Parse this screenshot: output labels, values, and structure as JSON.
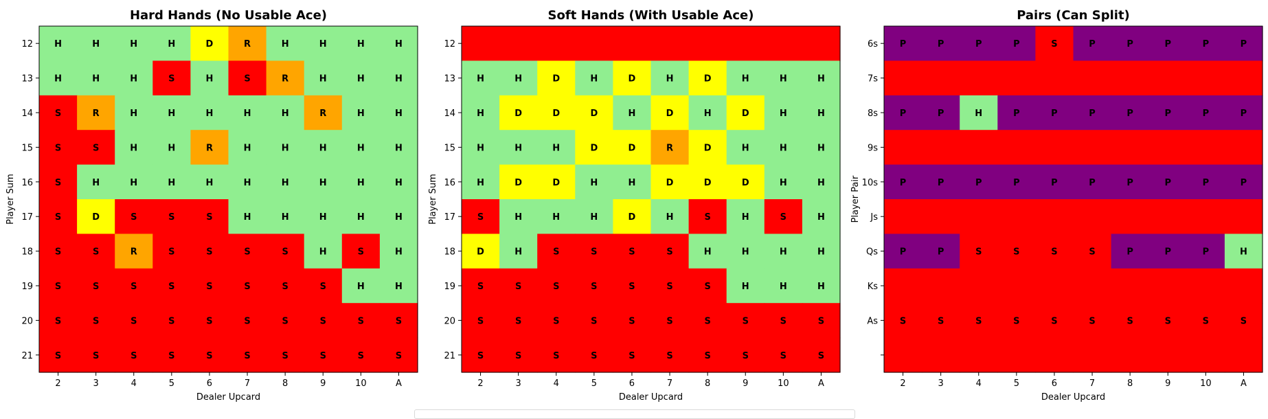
{
  "chart_data": [
    {
      "type": "heatmap",
      "title": "Hard Hands (No Usable Ace)",
      "xlabel": "Dealer Upcard",
      "ylabel": "Player Sum",
      "x": [
        "2",
        "3",
        "4",
        "5",
        "6",
        "7",
        "8",
        "9",
        "10",
        "A"
      ],
      "y": [
        "12",
        "13",
        "14",
        "15",
        "16",
        "17",
        "18",
        "19",
        "20",
        "21"
      ],
      "cells": [
        [
          "H",
          "H",
          "H",
          "H",
          "D",
          "R",
          "H",
          "H",
          "H",
          "H"
        ],
        [
          "H",
          "H",
          "H",
          "S",
          "H",
          "S",
          "R",
          "H",
          "H",
          "H"
        ],
        [
          "S",
          "R",
          "H",
          "H",
          "H",
          "H",
          "H",
          "R",
          "H",
          "H"
        ],
        [
          "S",
          "S",
          "H",
          "H",
          "R",
          "H",
          "H",
          "H",
          "H",
          "H"
        ],
        [
          "S",
          "H",
          "H",
          "H",
          "H",
          "H",
          "H",
          "H",
          "H",
          "H"
        ],
        [
          "S",
          "D",
          "S",
          "S",
          "S",
          "H",
          "H",
          "H",
          "H",
          "H"
        ],
        [
          "S",
          "S",
          "R",
          "S",
          "S",
          "S",
          "S",
          "H",
          "S",
          "H"
        ],
        [
          "S",
          "S",
          "S",
          "S",
          "S",
          "S",
          "S",
          "S",
          "H",
          "H"
        ],
        [
          "S",
          "S",
          "S",
          "S",
          "S",
          "S",
          "S",
          "S",
          "S",
          "S"
        ],
        [
          "S",
          "S",
          "S",
          "S",
          "S",
          "S",
          "S",
          "S",
          "S",
          "S"
        ]
      ]
    },
    {
      "type": "heatmap",
      "title": "Soft Hands (With Usable Ace)",
      "xlabel": "Dealer Upcard",
      "ylabel": "Player Sum",
      "x": [
        "2",
        "3",
        "4",
        "5",
        "6",
        "7",
        "8",
        "9",
        "10",
        "A"
      ],
      "y": [
        "12",
        "13",
        "14",
        "15",
        "16",
        "17",
        "18",
        "19",
        "20",
        "21"
      ],
      "cells": [
        [
          "",
          "",
          "",
          "",
          "",
          "",
          "",
          "",
          "",
          ""
        ],
        [
          "H",
          "H",
          "D",
          "H",
          "D",
          "H",
          "D",
          "H",
          "H",
          "H"
        ],
        [
          "H",
          "D",
          "D",
          "D",
          "H",
          "D",
          "H",
          "D",
          "H",
          "H"
        ],
        [
          "H",
          "H",
          "H",
          "D",
          "D",
          "R",
          "D",
          "H",
          "H",
          "H"
        ],
        [
          "H",
          "D",
          "D",
          "H",
          "H",
          "D",
          "D",
          "D",
          "H",
          "H"
        ],
        [
          "S",
          "H",
          "H",
          "H",
          "D",
          "H",
          "S",
          "H",
          "S",
          "H"
        ],
        [
          "D",
          "H",
          "S",
          "S",
          "S",
          "S",
          "H",
          "H",
          "H",
          "H"
        ],
        [
          "S",
          "S",
          "S",
          "S",
          "S",
          "S",
          "S",
          "H",
          "H",
          "H"
        ],
        [
          "S",
          "S",
          "S",
          "S",
          "S",
          "S",
          "S",
          "S",
          "S",
          "S"
        ],
        [
          "S",
          "S",
          "S",
          "S",
          "S",
          "S",
          "S",
          "S",
          "S",
          "S"
        ]
      ],
      "blank_fill": "S"
    },
    {
      "type": "heatmap",
      "title": "Pairs (Can Split)",
      "xlabel": "Dealer Upcard",
      "ylabel": "Player Pair",
      "x": [
        "2",
        "3",
        "4",
        "5",
        "6",
        "7",
        "8",
        "9",
        "10",
        "A"
      ],
      "y": [
        "6s",
        "7s",
        "8s",
        "9s",
        "10s",
        "Js",
        "Qs",
        "Ks",
        "As",
        ""
      ],
      "cells": [
        [
          "P",
          "P",
          "P",
          "P",
          "S",
          "P",
          "P",
          "P",
          "P",
          "P"
        ],
        [
          "",
          "",
          "",
          "",
          "",
          "",
          "",
          "",
          "",
          ""
        ],
        [
          "P",
          "P",
          "H",
          "P",
          "P",
          "P",
          "P",
          "P",
          "P",
          "P"
        ],
        [
          "",
          "",
          "",
          "",
          "",
          "",
          "",
          "",
          "",
          ""
        ],
        [
          "P",
          "P",
          "P",
          "P",
          "P",
          "P",
          "P",
          "P",
          "P",
          "P"
        ],
        [
          "",
          "",
          "",
          "",
          "",
          "",
          "",
          "",
          "",
          ""
        ],
        [
          "P",
          "P",
          "S",
          "S",
          "S",
          "S",
          "P",
          "P",
          "P",
          "H"
        ],
        [
          "",
          "",
          "",
          "",
          "",
          "",
          "",
          "",
          "",
          ""
        ],
        [
          "S",
          "S",
          "S",
          "S",
          "S",
          "S",
          "S",
          "S",
          "S",
          "S"
        ],
        [
          "",
          "",
          "",
          "",
          "",
          "",
          "",
          "",
          "",
          ""
        ]
      ],
      "blank_fill": "S"
    }
  ],
  "colors": {
    "H": "#90ee90",
    "S": "#ff0000",
    "D": "#ffff00",
    "R": "#ffa500",
    "P": "#800080"
  }
}
